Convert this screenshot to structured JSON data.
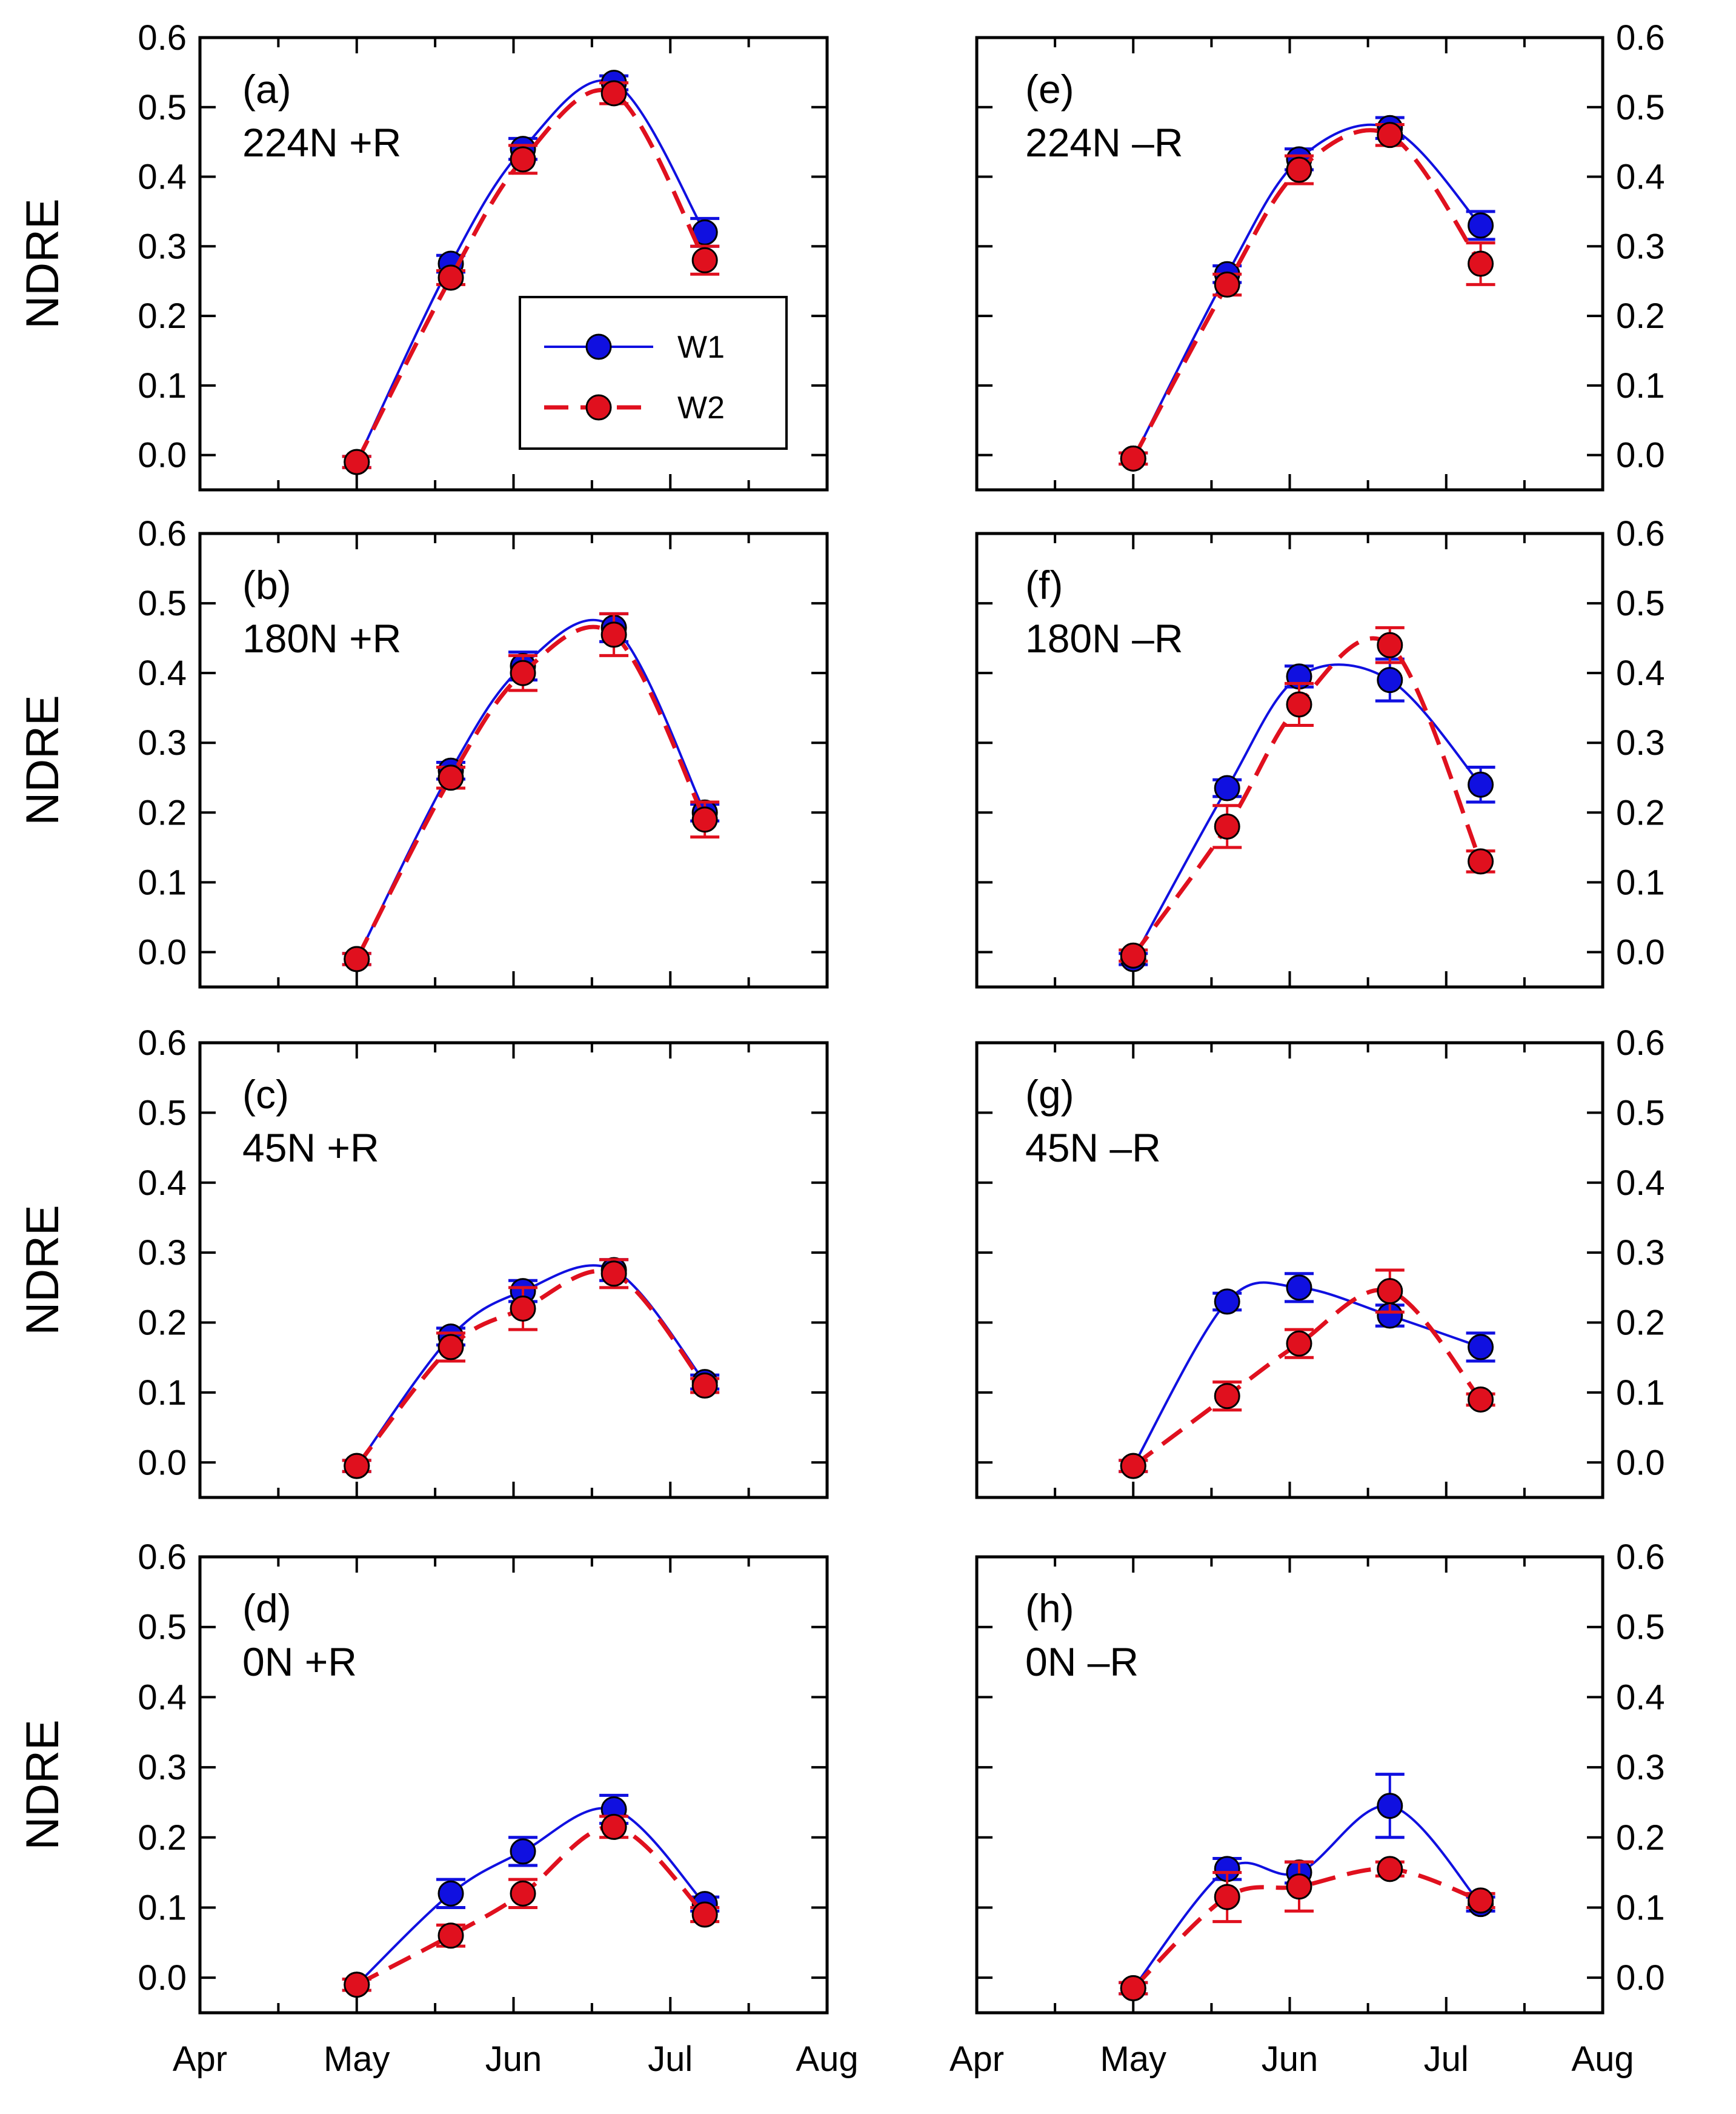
{
  "chart_data": {
    "type": "line",
    "ylabel": "NDRE",
    "xlabel": "",
    "ylim": [
      -0.05,
      0.6
    ],
    "yticks": [
      "0.0",
      "0.1",
      "0.2",
      "0.3",
      "0.4",
      "0.5",
      "0.6"
    ],
    "xticks": [
      "Apr",
      "May",
      "Jun",
      "Jul",
      "Aug"
    ],
    "x_sample_dates": [
      "early May",
      "late May",
      "early Jun",
      "late Jun",
      "mid Jul"
    ],
    "legend": {
      "location": "panel (a), center-right",
      "entries": [
        {
          "name": "W1",
          "color": "#1010e0",
          "style": "solid line, filled circle"
        },
        {
          "name": "W2",
          "color": "#e0101e",
          "style": "dashed line, filled circle"
        }
      ]
    },
    "panels": [
      {
        "id": "a",
        "label": "(a)",
        "treatment": "224N +R",
        "series": [
          {
            "name": "W1",
            "values": [
              -0.01,
              0.275,
              0.44,
              0.535,
              0.32
            ],
            "errors": [
              0.008,
              0.012,
              0.015,
              0.01,
              0.02
            ]
          },
          {
            "name": "W2",
            "values": [
              -0.01,
              0.255,
              0.425,
              0.52,
              0.28
            ],
            "errors": [
              0.008,
              0.01,
              0.02,
              0.015,
              0.02
            ]
          }
        ]
      },
      {
        "id": "b",
        "label": "(b)",
        "treatment": "180N +R",
        "series": [
          {
            "name": "W1",
            "values": [
              -0.01,
              0.26,
              0.41,
              0.465,
              0.2
            ],
            "errors": [
              0.008,
              0.012,
              0.02,
              0.02,
              0.012
            ]
          },
          {
            "name": "W2",
            "values": [
              -0.01,
              0.25,
              0.4,
              0.455,
              0.19
            ],
            "errors": [
              0.008,
              0.015,
              0.025,
              0.03,
              0.025
            ]
          }
        ]
      },
      {
        "id": "c",
        "label": "(c)",
        "treatment": "45N +R",
        "series": [
          {
            "name": "W1",
            "values": [
              -0.005,
              0.18,
              0.245,
              0.275,
              0.115
            ],
            "errors": [
              0.008,
              0.012,
              0.015,
              0.015,
              0.01
            ]
          },
          {
            "name": "W2",
            "values": [
              -0.005,
              0.165,
              0.22,
              0.27,
              0.11
            ],
            "errors": [
              0.008,
              0.02,
              0.03,
              0.02,
              0.01
            ]
          }
        ]
      },
      {
        "id": "d",
        "label": "(d)",
        "treatment": "0N +R",
        "series": [
          {
            "name": "W1",
            "values": [
              -0.01,
              0.12,
              0.18,
              0.24,
              0.105
            ],
            "errors": [
              0.008,
              0.02,
              0.02,
              0.02,
              0.01
            ]
          },
          {
            "name": "W2",
            "values": [
              -0.01,
              0.06,
              0.12,
              0.215,
              0.09
            ],
            "errors": [
              0.008,
              0.015,
              0.02,
              0.015,
              0.01
            ]
          }
        ]
      },
      {
        "id": "e",
        "label": "(e)",
        "treatment": "224N –R",
        "series": [
          {
            "name": "W1",
            "values": [
              -0.005,
              0.26,
              0.425,
              0.47,
              0.33
            ],
            "errors": [
              0.008,
              0.012,
              0.015,
              0.015,
              0.02
            ]
          },
          {
            "name": "W2",
            "values": [
              -0.005,
              0.245,
              0.41,
              0.46,
              0.275
            ],
            "errors": [
              0.008,
              0.015,
              0.02,
              0.015,
              0.03
            ]
          }
        ]
      },
      {
        "id": "f",
        "label": "(f)",
        "treatment": "180N –R",
        "series": [
          {
            "name": "W1",
            "values": [
              -0.01,
              0.235,
              0.395,
              0.39,
              0.24
            ],
            "errors": [
              0.008,
              0.012,
              0.015,
              0.03,
              0.025
            ]
          },
          {
            "name": "W2",
            "values": [
              -0.005,
              0.18,
              0.355,
              0.44,
              0.13
            ],
            "errors": [
              0.008,
              0.03,
              0.03,
              0.025,
              0.015
            ]
          }
        ]
      },
      {
        "id": "g",
        "label": "(g)",
        "treatment": "45N –R",
        "series": [
          {
            "name": "W1",
            "values": [
              -0.005,
              0.23,
              0.25,
              0.21,
              0.165
            ],
            "errors": [
              0.008,
              0.012,
              0.02,
              0.015,
              0.02
            ]
          },
          {
            "name": "W2",
            "values": [
              -0.005,
              0.095,
              0.17,
              0.245,
              0.09
            ],
            "errors": [
              0.008,
              0.02,
              0.02,
              0.03,
              0.008
            ]
          }
        ]
      },
      {
        "id": "h",
        "label": "(h)",
        "treatment": "0N –R",
        "series": [
          {
            "name": "W1",
            "values": [
              -0.015,
              0.155,
              0.15,
              0.245,
              0.105
            ],
            "errors": [
              0.008,
              0.015,
              0.015,
              0.045,
              0.01
            ]
          },
          {
            "name": "W2",
            "values": [
              -0.015,
              0.115,
              0.13,
              0.155,
              0.11
            ],
            "errors": [
              0.008,
              0.035,
              0.035,
              0.01,
              0.01
            ]
          }
        ]
      }
    ]
  }
}
